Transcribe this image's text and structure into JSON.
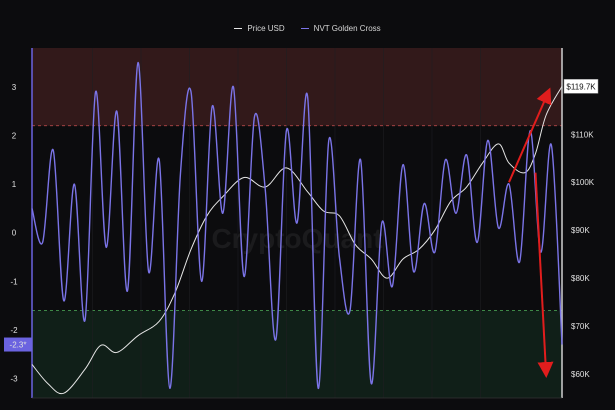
{
  "chart_data": {
    "type": "line",
    "title": "",
    "legend": {
      "placement": "top-center",
      "items": [
        {
          "name": "Price USD",
          "color": "#e6e6e6"
        },
        {
          "name": "NVT Golden Cross",
          "color": "#7b74e8"
        }
      ]
    },
    "watermark": "CryptoQuant",
    "left_axis": {
      "min": -3.4,
      "max": 3.8,
      "ticks": [
        3,
        2,
        1,
        0,
        -1,
        -2,
        -3
      ],
      "tick_labels": [
        "3",
        "2",
        "1",
        "0",
        "-1",
        "-2",
        "-3"
      ]
    },
    "right_axis": {
      "min": 55000,
      "max": 128000,
      "ticks": [
        110000,
        100000,
        90000,
        80000,
        70000,
        60000
      ],
      "tick_labels": [
        "$110K",
        "$100K",
        "$90K",
        "$80K",
        "$70K",
        "$60K"
      ]
    },
    "zones": {
      "upper_threshold": 2.2,
      "lower_threshold": -1.6,
      "upper_color": "#3a1c1c",
      "lower_color": "#12231a",
      "upper_line_color": "#c85050",
      "lower_line_color": "#4fae5a"
    },
    "current_nvt_label": "-2.3*",
    "current_price_label": "$119.7K",
    "series": [
      {
        "name": "Price USD",
        "axis": "right",
        "color": "#e6e6e6",
        "x": [
          0,
          0.03,
          0.06,
          0.1,
          0.13,
          0.16,
          0.2,
          0.24,
          0.27,
          0.3,
          0.33,
          0.36,
          0.4,
          0.44,
          0.48,
          0.52,
          0.55,
          0.58,
          0.61,
          0.64,
          0.67,
          0.7,
          0.73,
          0.76,
          0.79,
          0.82,
          0.85,
          0.88,
          0.9,
          0.93,
          0.95,
          0.97,
          1.0
        ],
        "values": [
          62000,
          58000,
          56000,
          61000,
          66000,
          64500,
          68000,
          71000,
          77000,
          86000,
          93000,
          97000,
          101000,
          99000,
          103000,
          98000,
          94000,
          93000,
          87000,
          84000,
          80000,
          84000,
          86000,
          90000,
          96000,
          99000,
          104000,
          108000,
          104000,
          102000,
          106000,
          114000,
          120000
        ]
      },
      {
        "name": "NVT Golden Cross",
        "axis": "left",
        "color": "#7b74e8",
        "x": [
          0,
          0.02,
          0.04,
          0.06,
          0.08,
          0.1,
          0.12,
          0.14,
          0.16,
          0.18,
          0.2,
          0.22,
          0.24,
          0.26,
          0.28,
          0.3,
          0.32,
          0.34,
          0.36,
          0.38,
          0.4,
          0.42,
          0.44,
          0.46,
          0.48,
          0.5,
          0.52,
          0.54,
          0.56,
          0.58,
          0.6,
          0.62,
          0.64,
          0.66,
          0.68,
          0.7,
          0.72,
          0.74,
          0.76,
          0.78,
          0.8,
          0.82,
          0.84,
          0.86,
          0.88,
          0.9,
          0.92,
          0.94,
          0.96,
          0.98,
          1.0
        ],
        "values": [
          0.5,
          -0.2,
          1.7,
          -1.4,
          1.0,
          -1.8,
          2.9,
          -0.3,
          2.5,
          -1.2,
          3.5,
          -0.8,
          1.5,
          -3.2,
          1.2,
          2.9,
          -1.0,
          2.6,
          0.4,
          3.0,
          -0.9,
          2.4,
          0.9,
          -2.2,
          2.1,
          0.2,
          2.8,
          -3.2,
          1.9,
          -0.5,
          -1.6,
          1.5,
          -3.1,
          0.2,
          -1.1,
          1.4,
          -0.8,
          0.6,
          -0.4,
          1.5,
          0.4,
          1.6,
          -0.2,
          1.9,
          0.1,
          1.0,
          -0.6,
          2.1,
          -0.4,
          1.8,
          -2.3
        ]
      }
    ],
    "annotations": [
      {
        "type": "arrow",
        "color": "#e11d1d",
        "from": {
          "x": 0.9,
          "y": 100000
        },
        "to": {
          "x": 0.975,
          "y": 119000
        }
      },
      {
        "type": "arrow",
        "color": "#e11d1d",
        "from": {
          "x": 0.95,
          "y": 102000
        },
        "to": {
          "x": 0.97,
          "y": 60000
        }
      }
    ]
  }
}
